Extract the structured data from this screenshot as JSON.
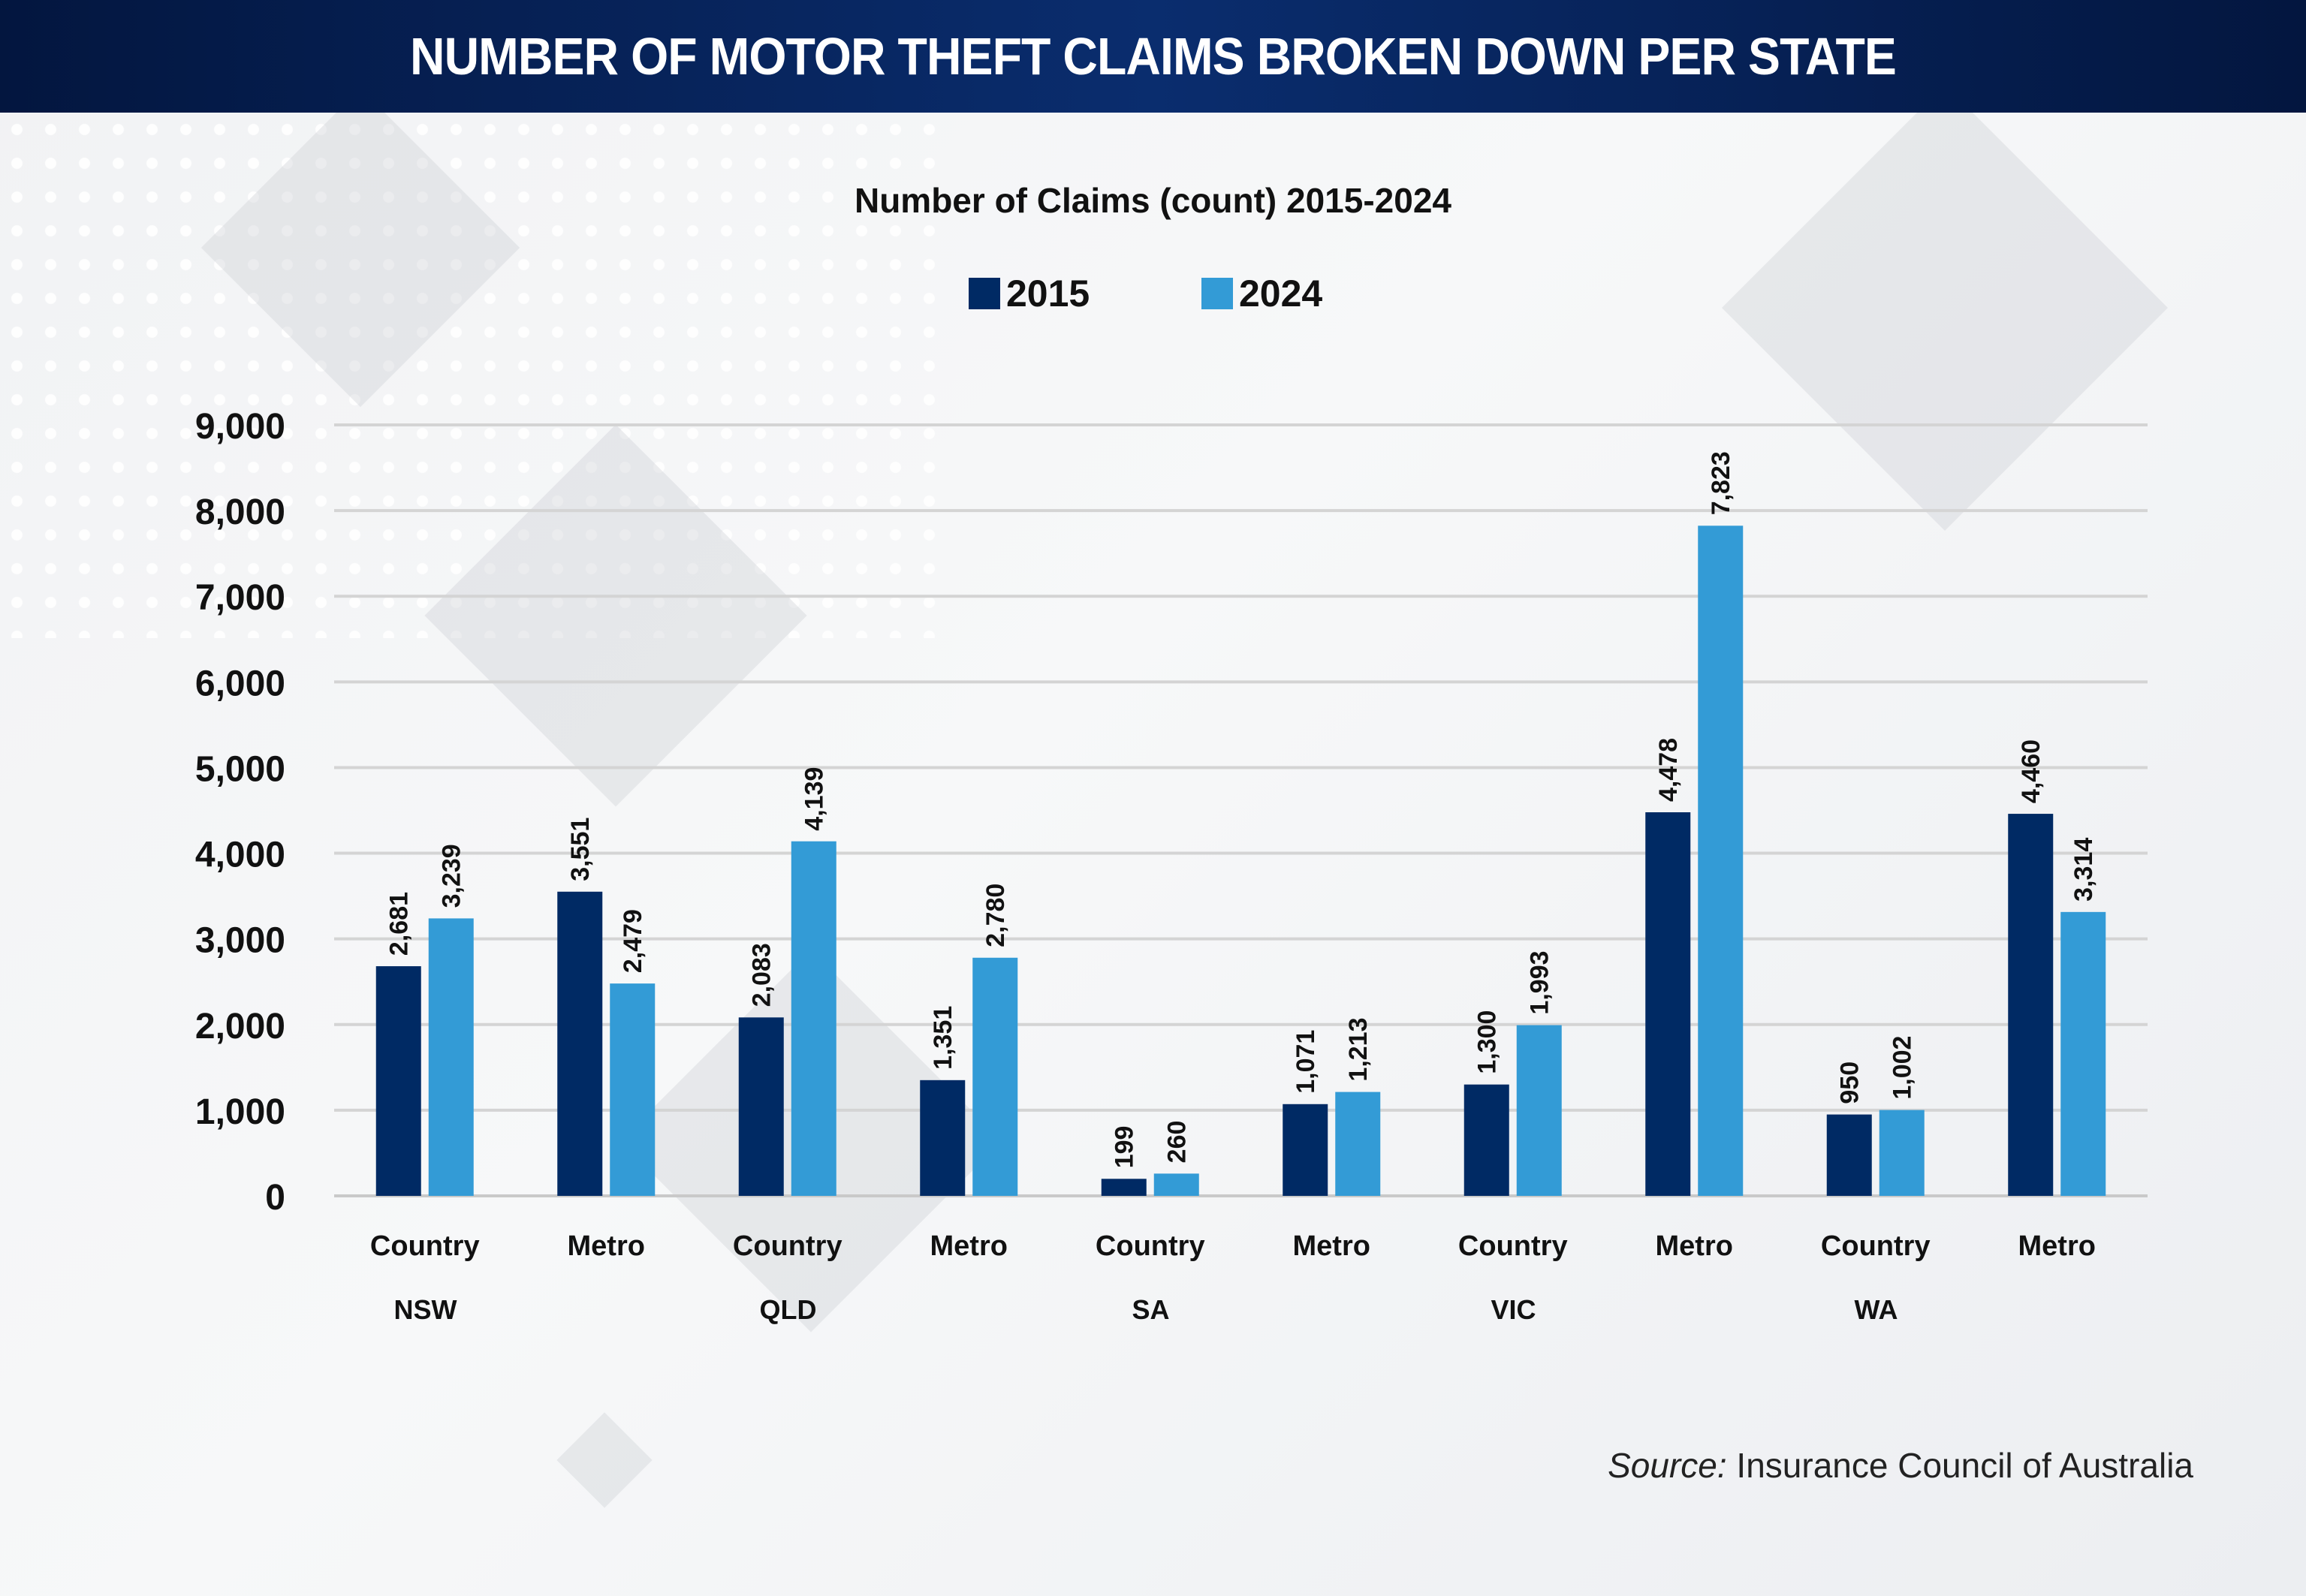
{
  "header": {
    "title": "NUMBER OF MOTOR THEFT CLAIMS BROKEN DOWN PER STATE"
  },
  "source": {
    "label": "Source:",
    "text": " Insurance Council of Australia"
  },
  "colors": {
    "series_2015": "#002a64",
    "series_2024": "#339bd6",
    "header_bg": "#0a2d6e"
  },
  "chart_data": {
    "type": "bar",
    "title": "Number of Claims (count) 2015-2024",
    "xlabel": "",
    "ylabel": "",
    "ylim": [
      0,
      9000
    ],
    "yticks": [
      "0",
      "1,000",
      "2,000",
      "3,000",
      "4,000",
      "5,000",
      "6,000",
      "7,000",
      "8,000",
      "9,000"
    ],
    "legend_position": "top",
    "grid": true,
    "groups": [
      "NSW",
      "QLD",
      "SA",
      "VIC",
      "WA"
    ],
    "categories": [
      "Country",
      "Metro",
      "Country",
      "Metro",
      "Country",
      "Metro",
      "Country",
      "Metro",
      "Country",
      "Metro"
    ],
    "series": [
      {
        "name": "2015",
        "values": [
          2681,
          3551,
          2083,
          1351,
          199,
          1071,
          1300,
          4478,
          950,
          4460
        ],
        "labels": [
          "2,681",
          "3,551",
          "2,083",
          "1,351",
          "199",
          "1,071",
          "1,300",
          "4,478",
          "950",
          "4,460"
        ]
      },
      {
        "name": "2024",
        "values": [
          3239,
          2479,
          4139,
          2780,
          260,
          1213,
          1993,
          7823,
          1002,
          3314
        ],
        "labels": [
          "3,239",
          "2,479",
          "4,139",
          "2,780",
          "260",
          "1,213",
          "1,993",
          "7,823",
          "1,002",
          "3,314"
        ]
      }
    ]
  }
}
